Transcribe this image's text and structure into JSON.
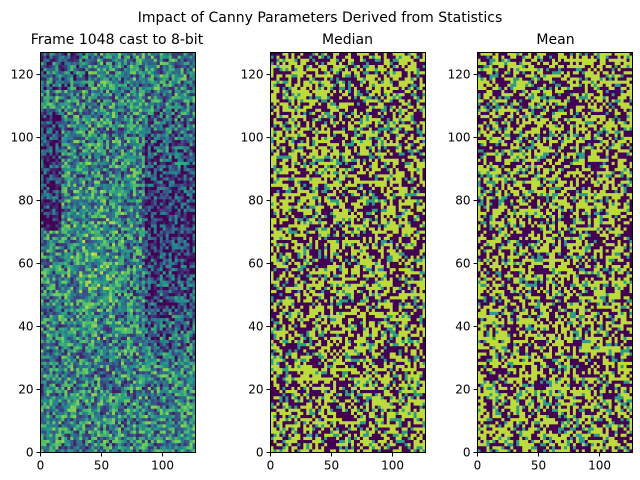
{
  "figure": {
    "suptitle": "Impact of Canny Parameters Derived from Statistics"
  },
  "colors": {
    "viridis_dark": "#440154",
    "viridis_blue": "#31688e",
    "viridis_teal": "#21918c",
    "viridis_green": "#35b779",
    "viridis_yellow": "#bddf26"
  },
  "chart_data": [
    {
      "type": "heatmap",
      "title": "Frame 1048 cast to 8-bit",
      "xlabel": "",
      "ylabel": "",
      "xlim": [
        0,
        127
      ],
      "ylim": [
        0,
        127
      ],
      "x_ticks": [
        0,
        50,
        100
      ],
      "y_ticks": [
        0,
        20,
        40,
        60,
        80,
        100,
        120
      ],
      "grid": false,
      "colormap": "viridis",
      "texture": "smooth noise; dark vertical band near x 85–127, y 30–110; dark region at x 0–15, y 70–105; brighter region near x 30–70, y 40–90"
    },
    {
      "type": "heatmap",
      "title": "Median",
      "xlabel": "",
      "ylabel": "",
      "xlim": [
        0,
        127
      ],
      "ylim": [
        0,
        127
      ],
      "x_ticks": [
        0,
        50,
        100
      ],
      "y_ticks": [
        0,
        20,
        40,
        60,
        80,
        100,
        120
      ],
      "grid": false,
      "colormap": "viridis",
      "texture": "high-contrast binary-like edge noise (dark purple / yellow-green)"
    },
    {
      "type": "heatmap",
      "title": "Mean",
      "xlabel": "",
      "ylabel": "",
      "xlim": [
        0,
        127
      ],
      "ylim": [
        0,
        127
      ],
      "x_ticks": [
        0,
        50,
        100
      ],
      "y_ticks": [
        0,
        20,
        40,
        60,
        80,
        100,
        120
      ],
      "grid": false,
      "colormap": "viridis",
      "texture": "high-contrast binary-like edge noise (dark purple / yellow-green)"
    }
  ]
}
